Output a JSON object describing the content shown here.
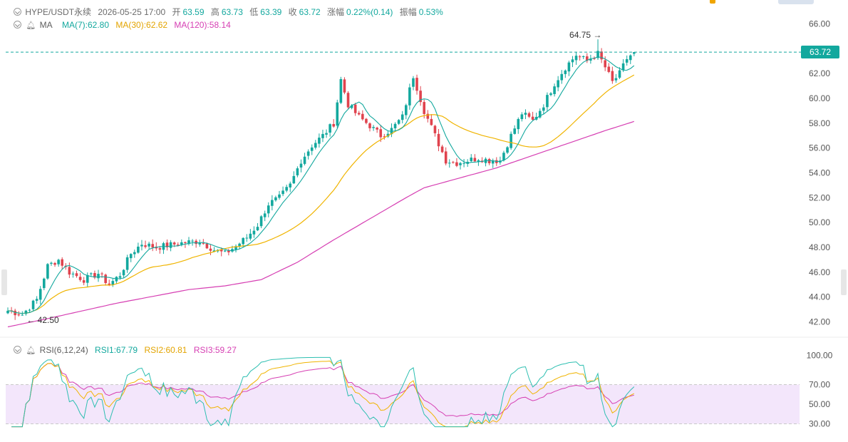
{
  "header": {
    "symbol": "HYPE/USDT永续",
    "datetime": "2026-05-25 17:00",
    "open_label": "开",
    "open": "63.59",
    "high_label": "高",
    "high": "63.73",
    "low_label": "低",
    "low": "63.39",
    "close_label": "收",
    "close": "63.72",
    "change_label": "涨幅",
    "change": "0.22%(0.14)",
    "amplitude_label": "振幅",
    "amplitude": "0.53%"
  },
  "ma_legend": {
    "name": "MA",
    "ma7": "MA(7):62.80",
    "ma30": "MA(30):62.62",
    "ma120": "MA(120):58.14"
  },
  "rsi_legend": {
    "name": "RSI(6,12,24)",
    "rsi1": "RSI1:67.79",
    "rsi2": "RSI2:60.81",
    "rsi3": "RSI3:59.27"
  },
  "price_tag": "63.72",
  "colors": {
    "up": "#13a89e",
    "down": "#e0434e",
    "ma7": "#13a89e",
    "ma30": "#f0b400",
    "ma120": "#d63fb3",
    "rsi1": "#2dbfb1",
    "rsi2": "#f0b400",
    "rsi3": "#d63fb3",
    "rsi_band": "#f3e6fb",
    "axis_text": "#555555",
    "dash": "#13a89e"
  },
  "chart_data": [
    {
      "type": "candlestick",
      "title": "HYPE/USDT永续",
      "ylim": [
        41.2,
        66.8
      ],
      "y_ticks": [
        "66.00",
        "64.00",
        "62.00",
        "60.00",
        "58.00",
        "56.00",
        "54.00",
        "52.00",
        "50.00",
        "48.00",
        "46.00",
        "44.00",
        "42.00"
      ],
      "last_price": 63.72,
      "annotations": {
        "high": "64.75",
        "low": "42.50"
      },
      "keypoints": [
        [
          0,
          42.9
        ],
        [
          4,
          42.6
        ],
        [
          8,
          43.8
        ],
        [
          11,
          46.5
        ],
        [
          14,
          47.0
        ],
        [
          17,
          46.0
        ],
        [
          21,
          45.4
        ],
        [
          25,
          45.9
        ],
        [
          28,
          45.0
        ],
        [
          31,
          45.8
        ],
        [
          34,
          47.5
        ],
        [
          37,
          48.3
        ],
        [
          41,
          48.0
        ],
        [
          45,
          48.2
        ],
        [
          49,
          48.4
        ],
        [
          53,
          48.5
        ],
        [
          57,
          47.8
        ],
        [
          60,
          47.5
        ],
        [
          63,
          48.1
        ],
        [
          66,
          48.8
        ],
        [
          69,
          49.8
        ],
        [
          72,
          51.5
        ],
        [
          75,
          52.0
        ],
        [
          78,
          53.0
        ],
        [
          81,
          55.0
        ],
        [
          84,
          56.2
        ],
        [
          87,
          57.0
        ],
        [
          90,
          58.0
        ],
        [
          92,
          61.5
        ],
        [
          94,
          59.5
        ],
        [
          97,
          58.5
        ],
        [
          100,
          57.8
        ],
        [
          103,
          57.0
        ],
        [
          106,
          57.5
        ],
        [
          109,
          58.5
        ],
        [
          112,
          61.8
        ],
        [
          115,
          59.0
        ],
        [
          118,
          57.0
        ],
        [
          121,
          55.0
        ],
        [
          124,
          54.8
        ],
        [
          127,
          55.0
        ],
        [
          130,
          55.2
        ],
        [
          133,
          55.0
        ],
        [
          136,
          55.0
        ],
        [
          139,
          57.0
        ],
        [
          142,
          58.8
        ],
        [
          145,
          58.2
        ],
        [
          148,
          59.5
        ],
        [
          151,
          61.2
        ],
        [
          154,
          62.5
        ],
        [
          157,
          63.5
        ],
        [
          160,
          63.0
        ],
        [
          163,
          63.6
        ],
        [
          165,
          62.5
        ],
        [
          167,
          61.3
        ],
        [
          169,
          62.0
        ],
        [
          171,
          63.2
        ],
        [
          173,
          63.72
        ]
      ],
      "ma7": {
        "name": "MA(7)",
        "last": 62.8
      },
      "ma30": {
        "name": "MA(30)",
        "last": 62.62
      },
      "ma120": {
        "name": "MA(120)",
        "last": 58.14,
        "keypoints": [
          [
            0,
            41.6
          ],
          [
            10,
            42.2
          ],
          [
            30,
            43.5
          ],
          [
            50,
            44.6
          ],
          [
            60,
            44.9
          ],
          [
            70,
            45.4
          ],
          [
            80,
            46.8
          ],
          [
            90,
            48.6
          ],
          [
            100,
            50.3
          ],
          [
            110,
            52.0
          ],
          [
            115,
            52.8
          ],
          [
            125,
            53.6
          ],
          [
            135,
            54.4
          ],
          [
            145,
            55.4
          ],
          [
            155,
            56.4
          ],
          [
            165,
            57.4
          ],
          [
            173,
            58.14
          ]
        ]
      }
    },
    {
      "type": "line",
      "title": "RSI(6,12,24)",
      "ylim": [
        25,
        103
      ],
      "y_ticks": [
        "100.00",
        "70.00",
        "50.00",
        "30.00"
      ],
      "band": [
        30,
        70
      ],
      "series": [
        {
          "name": "RSI1",
          "last": 67.79
        },
        {
          "name": "RSI2",
          "last": 60.81
        },
        {
          "name": "RSI3",
          "last": 59.27
        }
      ]
    }
  ]
}
